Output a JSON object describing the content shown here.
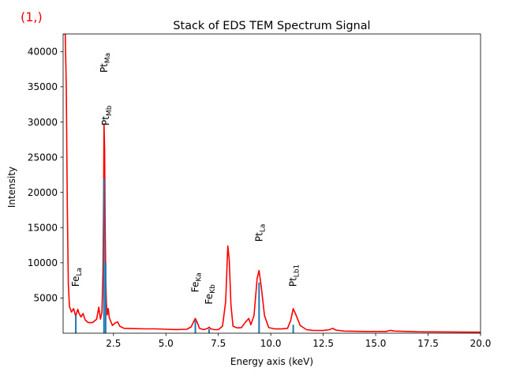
{
  "figure": {
    "navigator_index": "(1,)"
  },
  "chart_data": {
    "type": "line",
    "title": "Stack of EDS TEM Spectrum Signal",
    "xlabel": "Energy axis (keV)",
    "ylabel": "Intensity",
    "xlim": [
      0.1,
      20.0
    ],
    "ylim": [
      0,
      42500
    ],
    "xticks": [
      2.5,
      5.0,
      7.5,
      10.0,
      12.5,
      15.0,
      17.5,
      20.0
    ],
    "yticks": [
      5000,
      10000,
      15000,
      20000,
      25000,
      30000,
      35000,
      40000
    ],
    "grid": false,
    "colors": {
      "spectrum": "#ff0000",
      "markers": "#1f77b4"
    },
    "series": [
      {
        "x": [
          0.1,
          0.15,
          0.2,
          0.25,
          0.3,
          0.35,
          0.4,
          0.5,
          0.6,
          0.7,
          0.8,
          0.85,
          0.95,
          1.05,
          1.15,
          1.3,
          1.5,
          1.7,
          1.8,
          1.88,
          1.95,
          2.0,
          2.03,
          2.05,
          2.08,
          2.1,
          2.13,
          2.16,
          2.2,
          2.25,
          2.3,
          2.45,
          2.6,
          2.7,
          2.8,
          3.0,
          3.5,
          4.0,
          4.5,
          5.0,
          5.5,
          6.0,
          6.2,
          6.3,
          6.4,
          6.5,
          6.6,
          6.8,
          7.0,
          7.06,
          7.15,
          7.3,
          7.5,
          7.7,
          7.85,
          7.95,
          8.02,
          8.1,
          8.2,
          8.4,
          8.6,
          8.8,
          8.95,
          9.05,
          9.2,
          9.35,
          9.44,
          9.55,
          9.7,
          9.9,
          10.2,
          10.5,
          10.8,
          10.95,
          11.07,
          11.2,
          11.4,
          11.7,
          12.0,
          12.5,
          12.8,
          12.95,
          13.1,
          13.5,
          14.5,
          15.5,
          15.7,
          15.9,
          17.0,
          18.5,
          20.0
        ],
        "y": [
          42500,
          42500,
          42500,
          35000,
          18000,
          7000,
          3800,
          3000,
          3500,
          2400,
          3400,
          2900,
          2300,
          2800,
          1900,
          1500,
          1500,
          2000,
          3700,
          2000,
          3000,
          9000,
          19000,
          29700,
          26000,
          16000,
          8000,
          4500,
          2600,
          3500,
          2200,
          1100,
          1500,
          1600,
          1000,
          700,
          650,
          620,
          620,
          560,
          520,
          560,
          900,
          1500,
          2100,
          1500,
          700,
          500,
          700,
          850,
          600,
          520,
          500,
          1000,
          4500,
          12400,
          10500,
          4000,
          1000,
          750,
          800,
          1600,
          2100,
          1200,
          2500,
          7800,
          8900,
          6500,
          2500,
          800,
          600,
          600,
          700,
          1800,
          3500,
          2600,
          1100,
          500,
          400,
          380,
          500,
          700,
          450,
          300,
          250,
          250,
          400,
          300,
          200,
          180,
          150
        ]
      }
    ],
    "markers": [
      {
        "symbol": "Fe",
        "line": "La",
        "x": 0.705,
        "height": 2600,
        "label_y": 6600
      },
      {
        "symbol": "Pt",
        "line": "Ma",
        "x": 2.048,
        "height": 22000,
        "label_y": 37000
      },
      {
        "symbol": "Pt",
        "line": "Mb",
        "x": 2.127,
        "height": 10000,
        "label_y": 29500
      },
      {
        "symbol": "Fe",
        "line": "Ka",
        "x": 6.404,
        "height": 1800,
        "label_y": 5800
      },
      {
        "symbol": "Fe",
        "line": "Kb",
        "x": 7.058,
        "height": 600,
        "label_y": 4100
      },
      {
        "symbol": "Pt",
        "line": "La",
        "x": 9.442,
        "height": 7200,
        "label_y": 13000
      },
      {
        "symbol": "Pt",
        "line": "Lb1",
        "x": 11.071,
        "height": 1200,
        "label_y": 6600
      }
    ]
  }
}
